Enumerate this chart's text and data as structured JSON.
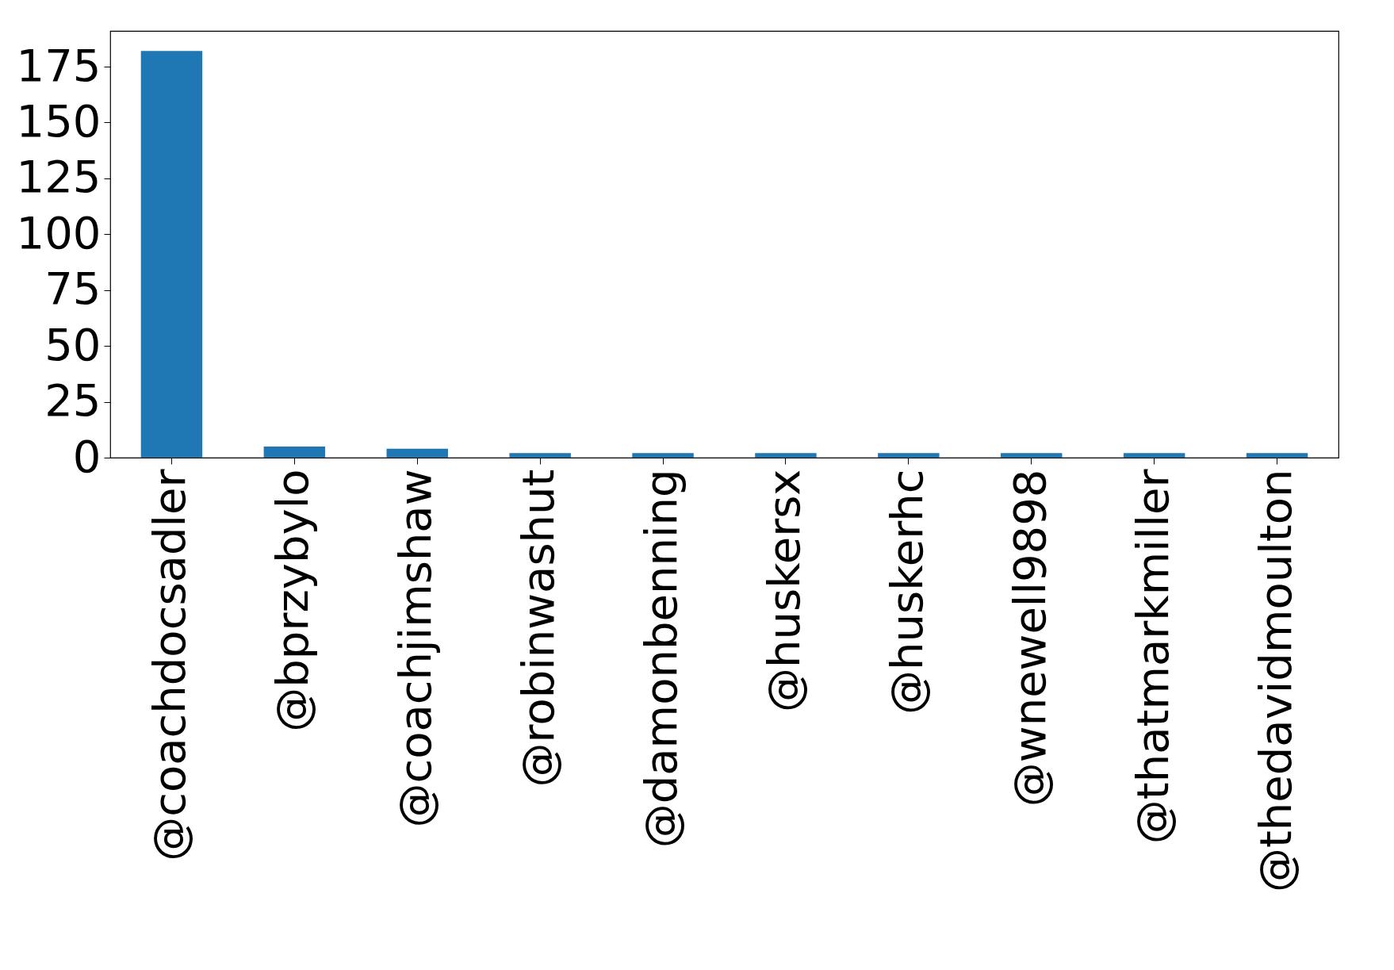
{
  "chart_data": {
    "type": "bar",
    "categories": [
      "@coachdocsadler",
      "@bprzybylo",
      "@coachjimshaw",
      "@robinwashut",
      "@damonbenning",
      "@huskersx",
      "@huskerhc",
      "@wnewell9898",
      "@thatmarkmiller",
      "@thedavidmoulton"
    ],
    "values": [
      182,
      5,
      4,
      2,
      2,
      2,
      2,
      2,
      2,
      2
    ],
    "color": "#1f77b4",
    "ylim": [
      0,
      191
    ],
    "yticks": [
      0,
      25,
      50,
      75,
      100,
      125,
      150,
      175
    ],
    "grid": false
  }
}
